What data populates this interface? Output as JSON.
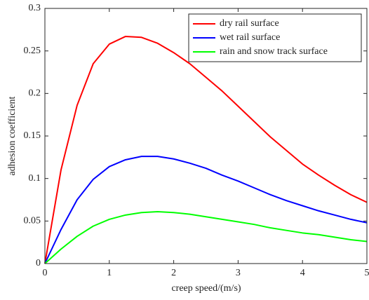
{
  "chart_data": {
    "type": "line",
    "xlabel": "creep speed/(m/s)",
    "ylabel": "adhesion coefficient",
    "x": [
      0,
      0.25,
      0.5,
      0.75,
      1,
      1.25,
      1.5,
      1.75,
      2,
      2.25,
      2.5,
      2.75,
      3,
      3.25,
      3.5,
      3.75,
      4,
      4.25,
      4.5,
      4.75,
      5
    ],
    "series": [
      {
        "name": "dry rail surface",
        "color": "#ff0000",
        "values": [
          0,
          0.11,
          0.186,
          0.235,
          0.258,
          0.267,
          0.266,
          0.259,
          0.248,
          0.235,
          0.219,
          0.203,
          0.185,
          0.167,
          0.149,
          0.133,
          0.117,
          0.104,
          0.092,
          0.081,
          0.072
        ]
      },
      {
        "name": "wet rail surface",
        "color": "#0000ff",
        "values": [
          0,
          0.04,
          0.075,
          0.099,
          0.114,
          0.122,
          0.126,
          0.126,
          0.123,
          0.118,
          0.112,
          0.104,
          0.097,
          0.089,
          0.081,
          0.074,
          0.068,
          0.062,
          0.057,
          0.052,
          0.048
        ]
      },
      {
        "name": "rain and snow track surface",
        "color": "#00ff00",
        "values": [
          0,
          0.017,
          0.032,
          0.044,
          0.052,
          0.057,
          0.06,
          0.061,
          0.06,
          0.058,
          0.055,
          0.052,
          0.049,
          0.046,
          0.042,
          0.039,
          0.036,
          0.034,
          0.031,
          0.028,
          0.026
        ]
      }
    ],
    "xlim": [
      0,
      5
    ],
    "xticks": [
      0,
      1,
      2,
      3,
      4,
      5
    ],
    "ylim": [
      0,
      0.3
    ],
    "yticks": [
      0,
      0.05,
      0.1,
      0.15,
      0.2,
      0.25,
      0.3
    ],
    "legend": "upper right"
  }
}
